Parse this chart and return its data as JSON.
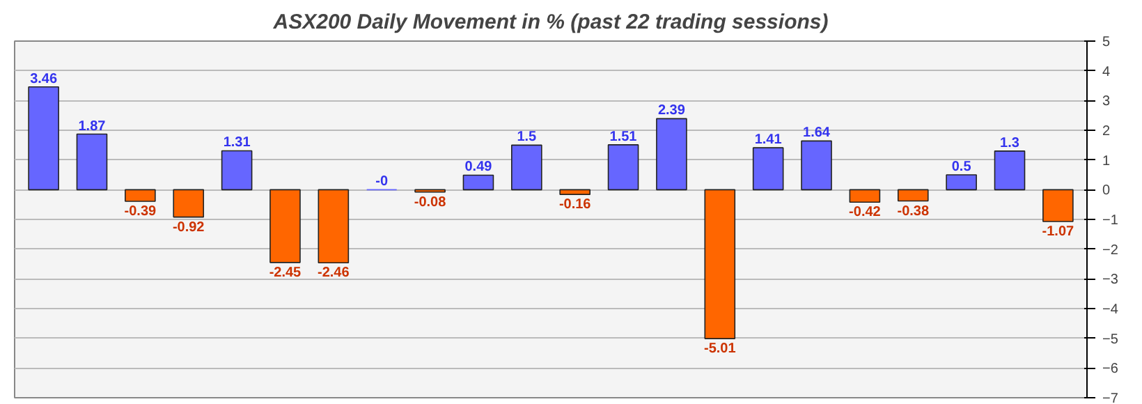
{
  "chart_data": {
    "type": "bar",
    "title": "ASX200 Daily Movement in % (past 22 trading sessions)",
    "categories": [
      null,
      null,
      null,
      null,
      null,
      null,
      null,
      null,
      null,
      null,
      null,
      null,
      null,
      null,
      null,
      null,
      null,
      null,
      null,
      null,
      null,
      null
    ],
    "values": [
      3.46,
      1.87,
      -0.39,
      -0.92,
      1.31,
      -2.45,
      -2.46,
      0,
      -0.08,
      0.49,
      1.5,
      -0.16,
      1.51,
      2.39,
      -5.01,
      1.41,
      1.64,
      -0.42,
      -0.38,
      0.5,
      1.3,
      -1.07
    ],
    "value_labels": [
      "3.46",
      "1.87",
      "-0.39",
      "-0.92",
      "1.31",
      "-2.45",
      "-2.46",
      "-0",
      "-0.08",
      "0.49",
      "1.5",
      "-0.16",
      "1.51",
      "2.39",
      "-5.01",
      "1.41",
      "1.64",
      "-0.42",
      "-0.38",
      "0.5",
      "1.3",
      "-1.07"
    ],
    "colors": [
      "#6666ff",
      "#6666ff",
      "#ff6600",
      "#ff6600",
      "#6666ff",
      "#ff6600",
      "#ff6600",
      "#6666ff",
      "#ff6600",
      "#6666ff",
      "#6666ff",
      "#ff6600",
      "#6666ff",
      "#6666ff",
      "#ff6600",
      "#6666ff",
      "#6666ff",
      "#ff6600",
      "#ff6600",
      "#6666ff",
      "#6666ff",
      "#ff6600"
    ],
    "ylim": [
      -7,
      5
    ],
    "yticks": [
      -7,
      -6,
      -5,
      -4,
      -3,
      -2,
      -1,
      0,
      1,
      2,
      3,
      4,
      5
    ],
    "grid": "y"
  }
}
